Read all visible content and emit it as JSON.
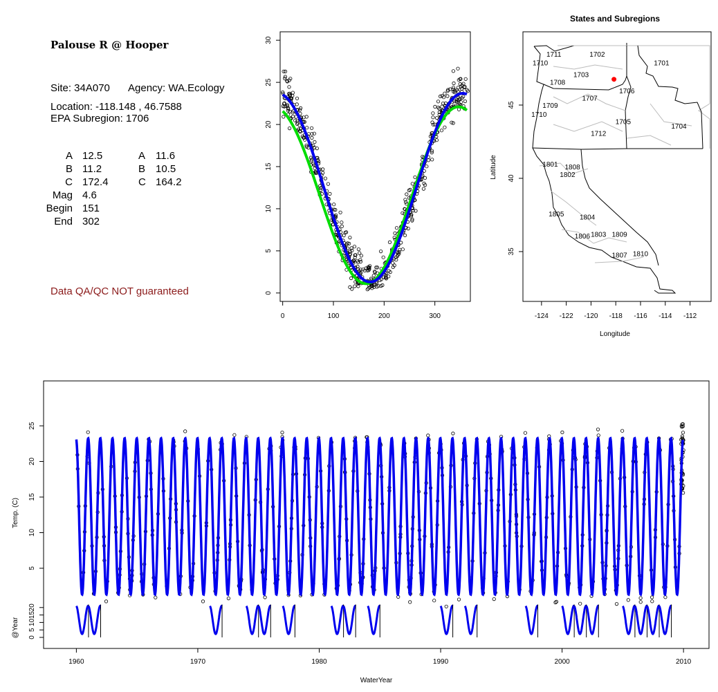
{
  "info": {
    "title": "Palouse R @ Hooper",
    "site": "Site: 34A070",
    "agency": "Agency: WA.Ecology",
    "location": "Location: -118.148 , 46.7588",
    "epa_subregion": "EPA Subregion: 1706",
    "params_left": [
      {
        "label": "A",
        "value": "12.5"
      },
      {
        "label": "B",
        "value": "11.2"
      },
      {
        "label": "C",
        "value": "172.4"
      },
      {
        "label": "Mag",
        "value": "4.6"
      },
      {
        "label": "Begin",
        "value": "151"
      },
      {
        "label": "End",
        "value": "302"
      }
    ],
    "params_right": [
      {
        "label": "A",
        "value": "11.6"
      },
      {
        "label": "B",
        "value": "10.5"
      },
      {
        "label": "C",
        "value": "164.2"
      }
    ],
    "qa_note": "Data QA/QC NOT guaranteed",
    "qa_color": "#8b1a1a"
  },
  "chart_data": [
    {
      "type": "scatter",
      "title": "",
      "xlabel": "",
      "ylabel": "",
      "xlim": [
        -5,
        370
      ],
      "ylim": [
        -1,
        31
      ],
      "x_ticks": [
        0,
        100,
        200,
        300
      ],
      "y_ticks": [
        0,
        5,
        10,
        15,
        20,
        25,
        30
      ],
      "grid": false,
      "series": [
        {
          "kind": "points",
          "color": "#000000",
          "note": "daily temperature observations by day of water year (approximately 600 points)"
        },
        {
          "kind": "line",
          "color": "#00dd00",
          "params": {
            "A": 11.6,
            "B": 10.5,
            "C": 164.2
          }
        },
        {
          "kind": "line",
          "color": "#0000ee",
          "params": {
            "A": 12.5,
            "B": 11.2,
            "C": 172.4
          }
        }
      ]
    },
    {
      "type": "map",
      "title": "States and Subregions",
      "xlabel": "Longitude",
      "ylabel": "Latitude",
      "xlim": [
        -125.5,
        -110.3
      ],
      "ylim": [
        31.6,
        50
      ],
      "x_ticks": [
        -124,
        -122,
        -120,
        -118,
        -116,
        -114,
        -112
      ],
      "y_ticks": [
        35,
        40,
        45
      ],
      "site": {
        "lon": -118.148,
        "lat": 46.7588,
        "color": "#ff0000"
      },
      "subregion_labels": [
        {
          "label": "1711",
          "lon": -123.0,
          "lat": 48.3
        },
        {
          "label": "1710",
          "lon": -124.1,
          "lat": 47.7
        },
        {
          "label": "1702",
          "lon": -119.5,
          "lat": 48.3
        },
        {
          "label": "1701",
          "lon": -114.3,
          "lat": 47.7
        },
        {
          "label": "1703",
          "lon": -120.8,
          "lat": 46.9
        },
        {
          "label": "1708",
          "lon": -122.7,
          "lat": 46.4
        },
        {
          "label": "1706",
          "lon": -117.1,
          "lat": 45.8
        },
        {
          "label": "1707",
          "lon": -120.1,
          "lat": 45.3
        },
        {
          "label": "1709",
          "lon": -123.3,
          "lat": 44.8
        },
        {
          "label": "1710",
          "lon": -124.2,
          "lat": 44.2
        },
        {
          "label": "1705",
          "lon": -117.4,
          "lat": 43.7
        },
        {
          "label": "1704",
          "lon": -112.9,
          "lat": 43.4
        },
        {
          "label": "1712",
          "lon": -119.4,
          "lat": 42.9
        },
        {
          "label": "1801",
          "lon": -123.3,
          "lat": 40.8
        },
        {
          "label": "1808",
          "lon": -121.5,
          "lat": 40.6
        },
        {
          "label": "1802",
          "lon": -121.9,
          "lat": 40.1
        },
        {
          "label": "1805",
          "lon": -122.8,
          "lat": 37.4
        },
        {
          "label": "1804",
          "lon": -120.3,
          "lat": 37.2
        },
        {
          "label": "1806",
          "lon": -120.7,
          "lat": 35.9
        },
        {
          "label": "1803",
          "lon": -119.4,
          "lat": 36.0
        },
        {
          "label": "1809",
          "lon": -117.7,
          "lat": 36.0
        },
        {
          "label": "1807",
          "lon": -117.7,
          "lat": 34.6
        },
        {
          "label": "1810",
          "lon": -116.0,
          "lat": 34.7
        }
      ]
    },
    {
      "type": "line",
      "title": "",
      "xlabel": "WaterYear",
      "ylabel": "Temp. (C)",
      "ylabel2": "@Year",
      "xlim": [
        1957.3,
        2012.1
      ],
      "x_ticks": [
        1960,
        1970,
        1980,
        1990,
        2000,
        2010
      ],
      "y_ticks": [
        5,
        10,
        15,
        20,
        25
      ],
      "y_ticks2": [
        0,
        5,
        10,
        15,
        20
      ],
      "main_ylim": [
        -6.5,
        30.5
      ],
      "sub_ylim": [
        -5,
        33
      ],
      "series": [
        {
          "kind": "fitted-seasonal-curve",
          "color": "#0000ee",
          "from": 1960,
          "to": 2010
        },
        {
          "kind": "points",
          "color": "#000000",
          "note": "temperature samples, with dense sampling in 2009-2010"
        }
      ],
      "sampled_years": [
        1960,
        1961,
        1971,
        1974,
        1975,
        1977,
        1981,
        1982,
        1984,
        1990,
        1992,
        1997,
        2000,
        2001,
        2002,
        2005,
        2006,
        2007,
        2008
      ]
    }
  ]
}
